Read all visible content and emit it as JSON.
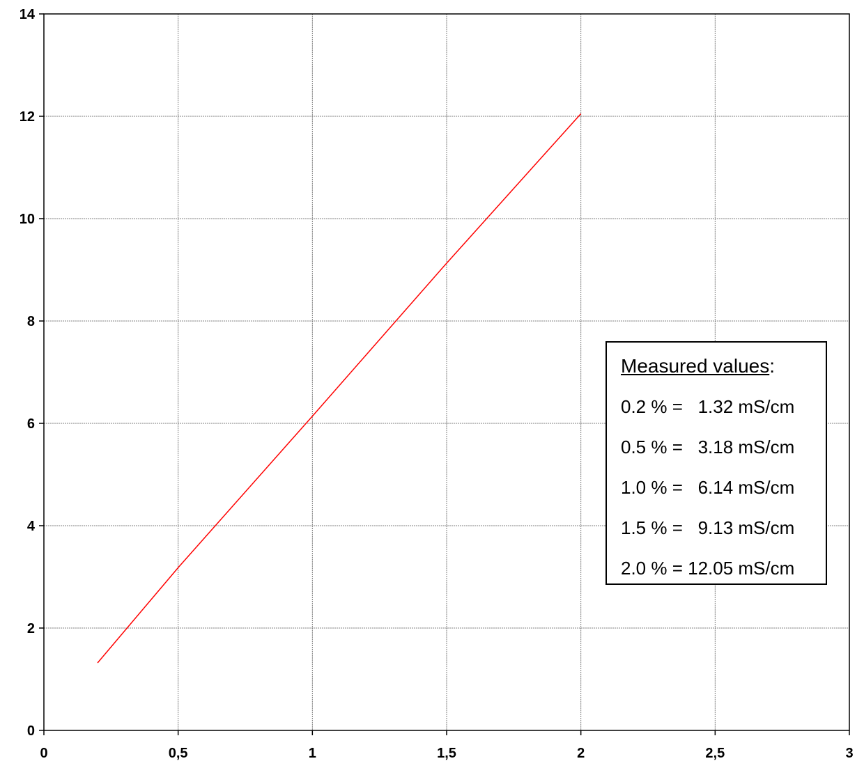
{
  "chart_data": {
    "type": "line",
    "title": "",
    "xlabel": "",
    "ylabel": "",
    "xlim": [
      0,
      3
    ],
    "ylim": [
      0,
      14
    ],
    "x_ticks": [
      0,
      0.5,
      1,
      1.5,
      2,
      2.5,
      3
    ],
    "x_tick_labels": [
      "0",
      "0,5",
      "1",
      "1,5",
      "2",
      "2,5",
      "3"
    ],
    "y_ticks": [
      0,
      2,
      4,
      6,
      8,
      10,
      12,
      14
    ],
    "y_tick_labels": [
      "0",
      "2",
      "4",
      "6",
      "8",
      "10",
      "12",
      "14"
    ],
    "grid": true,
    "line_color": "#ff0000",
    "series": [
      {
        "x": [
          0.2,
          0.5,
          1.0,
          1.5,
          2.0
        ],
        "y": [
          1.32,
          3.18,
          6.14,
          9.13,
          12.05
        ]
      }
    ],
    "annotation": {
      "title": "Measured values",
      "title_suffix": ":",
      "lines": [
        "0.2 % =   1.32 mS/cm",
        "0.5 % =   3.18 mS/cm",
        "1.0 % =   6.14 mS/cm",
        "1.5 % =   9.13 mS/cm",
        "2.0 % = 12.05 mS/cm"
      ]
    }
  }
}
